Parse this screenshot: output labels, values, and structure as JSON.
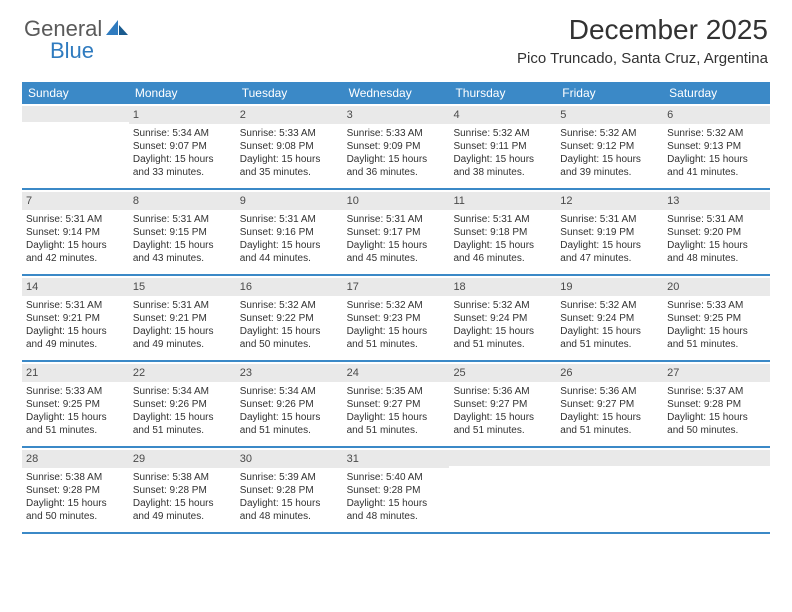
{
  "logo": {
    "textGeneral": "General",
    "textBlue": "Blue"
  },
  "header": {
    "monthTitle": "December 2025",
    "location": "Pico Truncado, Santa Cruz, Argentina"
  },
  "colors": {
    "headerBlue": "#3b89c7",
    "dayBarGray": "#e9e9e9",
    "textDark": "#323232",
    "logoGray": "#5a5a5a",
    "logoBlue": "#2f7bbf"
  },
  "daysOfWeek": [
    "Sunday",
    "Monday",
    "Tuesday",
    "Wednesday",
    "Thursday",
    "Friday",
    "Saturday"
  ],
  "weeks": [
    [
      {
        "num": "",
        "lines": []
      },
      {
        "num": "1",
        "lines": [
          "Sunrise: 5:34 AM",
          "Sunset: 9:07 PM",
          "Daylight: 15 hours",
          "and 33 minutes."
        ]
      },
      {
        "num": "2",
        "lines": [
          "Sunrise: 5:33 AM",
          "Sunset: 9:08 PM",
          "Daylight: 15 hours",
          "and 35 minutes."
        ]
      },
      {
        "num": "3",
        "lines": [
          "Sunrise: 5:33 AM",
          "Sunset: 9:09 PM",
          "Daylight: 15 hours",
          "and 36 minutes."
        ]
      },
      {
        "num": "4",
        "lines": [
          "Sunrise: 5:32 AM",
          "Sunset: 9:11 PM",
          "Daylight: 15 hours",
          "and 38 minutes."
        ]
      },
      {
        "num": "5",
        "lines": [
          "Sunrise: 5:32 AM",
          "Sunset: 9:12 PM",
          "Daylight: 15 hours",
          "and 39 minutes."
        ]
      },
      {
        "num": "6",
        "lines": [
          "Sunrise: 5:32 AM",
          "Sunset: 9:13 PM",
          "Daylight: 15 hours",
          "and 41 minutes."
        ]
      }
    ],
    [
      {
        "num": "7",
        "lines": [
          "Sunrise: 5:31 AM",
          "Sunset: 9:14 PM",
          "Daylight: 15 hours",
          "and 42 minutes."
        ]
      },
      {
        "num": "8",
        "lines": [
          "Sunrise: 5:31 AM",
          "Sunset: 9:15 PM",
          "Daylight: 15 hours",
          "and 43 minutes."
        ]
      },
      {
        "num": "9",
        "lines": [
          "Sunrise: 5:31 AM",
          "Sunset: 9:16 PM",
          "Daylight: 15 hours",
          "and 44 minutes."
        ]
      },
      {
        "num": "10",
        "lines": [
          "Sunrise: 5:31 AM",
          "Sunset: 9:17 PM",
          "Daylight: 15 hours",
          "and 45 minutes."
        ]
      },
      {
        "num": "11",
        "lines": [
          "Sunrise: 5:31 AM",
          "Sunset: 9:18 PM",
          "Daylight: 15 hours",
          "and 46 minutes."
        ]
      },
      {
        "num": "12",
        "lines": [
          "Sunrise: 5:31 AM",
          "Sunset: 9:19 PM",
          "Daylight: 15 hours",
          "and 47 minutes."
        ]
      },
      {
        "num": "13",
        "lines": [
          "Sunrise: 5:31 AM",
          "Sunset: 9:20 PM",
          "Daylight: 15 hours",
          "and 48 minutes."
        ]
      }
    ],
    [
      {
        "num": "14",
        "lines": [
          "Sunrise: 5:31 AM",
          "Sunset: 9:21 PM",
          "Daylight: 15 hours",
          "and 49 minutes."
        ]
      },
      {
        "num": "15",
        "lines": [
          "Sunrise: 5:31 AM",
          "Sunset: 9:21 PM",
          "Daylight: 15 hours",
          "and 49 minutes."
        ]
      },
      {
        "num": "16",
        "lines": [
          "Sunrise: 5:32 AM",
          "Sunset: 9:22 PM",
          "Daylight: 15 hours",
          "and 50 minutes."
        ]
      },
      {
        "num": "17",
        "lines": [
          "Sunrise: 5:32 AM",
          "Sunset: 9:23 PM",
          "Daylight: 15 hours",
          "and 51 minutes."
        ]
      },
      {
        "num": "18",
        "lines": [
          "Sunrise: 5:32 AM",
          "Sunset: 9:24 PM",
          "Daylight: 15 hours",
          "and 51 minutes."
        ]
      },
      {
        "num": "19",
        "lines": [
          "Sunrise: 5:32 AM",
          "Sunset: 9:24 PM",
          "Daylight: 15 hours",
          "and 51 minutes."
        ]
      },
      {
        "num": "20",
        "lines": [
          "Sunrise: 5:33 AM",
          "Sunset: 9:25 PM",
          "Daylight: 15 hours",
          "and 51 minutes."
        ]
      }
    ],
    [
      {
        "num": "21",
        "lines": [
          "Sunrise: 5:33 AM",
          "Sunset: 9:25 PM",
          "Daylight: 15 hours",
          "and 51 minutes."
        ]
      },
      {
        "num": "22",
        "lines": [
          "Sunrise: 5:34 AM",
          "Sunset: 9:26 PM",
          "Daylight: 15 hours",
          "and 51 minutes."
        ]
      },
      {
        "num": "23",
        "lines": [
          "Sunrise: 5:34 AM",
          "Sunset: 9:26 PM",
          "Daylight: 15 hours",
          "and 51 minutes."
        ]
      },
      {
        "num": "24",
        "lines": [
          "Sunrise: 5:35 AM",
          "Sunset: 9:27 PM",
          "Daylight: 15 hours",
          "and 51 minutes."
        ]
      },
      {
        "num": "25",
        "lines": [
          "Sunrise: 5:36 AM",
          "Sunset: 9:27 PM",
          "Daylight: 15 hours",
          "and 51 minutes."
        ]
      },
      {
        "num": "26",
        "lines": [
          "Sunrise: 5:36 AM",
          "Sunset: 9:27 PM",
          "Daylight: 15 hours",
          "and 51 minutes."
        ]
      },
      {
        "num": "27",
        "lines": [
          "Sunrise: 5:37 AM",
          "Sunset: 9:28 PM",
          "Daylight: 15 hours",
          "and 50 minutes."
        ]
      }
    ],
    [
      {
        "num": "28",
        "lines": [
          "Sunrise: 5:38 AM",
          "Sunset: 9:28 PM",
          "Daylight: 15 hours",
          "and 50 minutes."
        ]
      },
      {
        "num": "29",
        "lines": [
          "Sunrise: 5:38 AM",
          "Sunset: 9:28 PM",
          "Daylight: 15 hours",
          "and 49 minutes."
        ]
      },
      {
        "num": "30",
        "lines": [
          "Sunrise: 5:39 AM",
          "Sunset: 9:28 PM",
          "Daylight: 15 hours",
          "and 48 minutes."
        ]
      },
      {
        "num": "31",
        "lines": [
          "Sunrise: 5:40 AM",
          "Sunset: 9:28 PM",
          "Daylight: 15 hours",
          "and 48 minutes."
        ]
      },
      {
        "num": "",
        "lines": []
      },
      {
        "num": "",
        "lines": []
      },
      {
        "num": "",
        "lines": []
      }
    ]
  ]
}
